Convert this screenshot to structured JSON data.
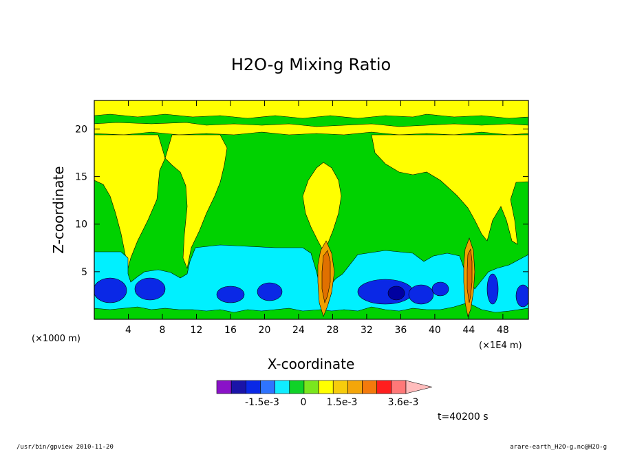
{
  "chart_data": {
    "type": "heatmap",
    "title": "H2O-g Mixing Ratio",
    "xlabel": "X-coordinate",
    "ylabel": "Z-coordinate",
    "x_unit_left": "(×1000 m)",
    "x_unit_right": "(×1E4 m)",
    "xlim": [
      0,
      51
    ],
    "ylim": [
      0,
      23
    ],
    "x_ticks": [
      4,
      8,
      12,
      16,
      20,
      24,
      28,
      32,
      36,
      40,
      44,
      48
    ],
    "x_tick_labels": [
      "4",
      "8",
      "12",
      "16",
      "20",
      "24",
      "28",
      "32",
      "36",
      "40",
      "44",
      "48"
    ],
    "y_ticks": [
      5,
      10,
      15,
      20
    ],
    "y_tick_labels": [
      "5",
      "10",
      "15",
      "20"
    ],
    "colorbar": {
      "colors": [
        "#8a12c8",
        "#1a14a8",
        "#0a28e6",
        "#2f74ff",
        "#10ecff",
        "#10d228",
        "#7ae61e",
        "#ffff00",
        "#f6cc0c",
        "#f4a60a",
        "#f47a0c",
        "#ff1e1e",
        "#ff7878",
        "#ffbcbc"
      ],
      "labels": [
        "-1.5e-3",
        "0",
        "1.5e-3",
        "3.6e-3"
      ]
    },
    "time_label": "t=40200 s"
  },
  "footer": {
    "left": "/usr/bin/gpview  2010-11-20",
    "right": "arare-earth_H2O-g.nc@H2O-g"
  },
  "colors": {
    "green": "#00d200",
    "yellow": "#ffff00",
    "cyan": "#00f0ff",
    "blue": "#0000e6",
    "darkblue": "#0000a0",
    "orange": "#f0a000",
    "darkorange": "#e07000",
    "red": "#d00000"
  }
}
